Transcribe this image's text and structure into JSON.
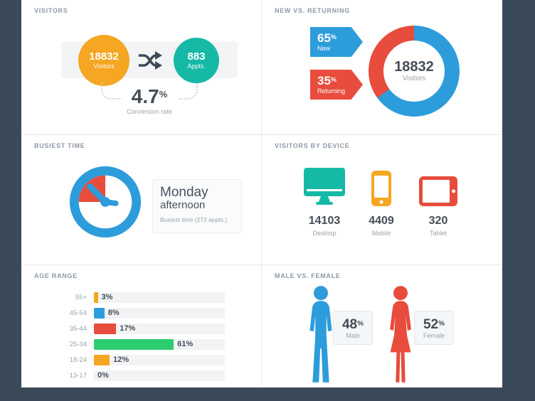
{
  "theme": {
    "background": "#3b4a59",
    "panel_bg": "#ffffff",
    "blue": "#2d9cdb",
    "red": "#e74c3c",
    "teal": "#16b9a5",
    "orange": "#f5a623",
    "green": "#2ecc71",
    "dark_text": "#454d57",
    "gray_text": "#9aa4ad"
  },
  "visitors_panel": {
    "title": "VISITORS",
    "visitors_value": "18832",
    "visitors_label": "Visitors",
    "appts_value": "883",
    "appts_label": "Appts.",
    "conversion_value": "4.7",
    "conversion_unit": "%",
    "conversion_label": "Conversion rate"
  },
  "new_vs_returning_panel": {
    "title": "NEW VS. RETURNING",
    "unit": "%",
    "new_pct": 65,
    "new_label": "New",
    "returning_pct": 35,
    "returning_label": "Returning",
    "total_value": "18832",
    "total_label": "Visitors"
  },
  "busiest_time_panel": {
    "title": "BUSIEST TIME",
    "day": "Monday",
    "period": "afternoon",
    "caption": "Busiest time",
    "caption_detail": "(272 appts.)"
  },
  "device_panel": {
    "title": "VISITORS BY DEVICE",
    "devices": [
      {
        "value": "14103",
        "label": "Desktop"
      },
      {
        "value": "4409",
        "label": "Mobile"
      },
      {
        "value": "320",
        "label": "Tablet"
      }
    ]
  },
  "age_panel": {
    "title": "AGE RANGE",
    "rows": [
      {
        "label": "55+",
        "pct": 3,
        "pct_label": "3%",
        "color": "#f5a623"
      },
      {
        "label": "45-54",
        "pct": 8,
        "pct_label": "8%",
        "color": "#2d9cdb"
      },
      {
        "label": "35-44",
        "pct": 17,
        "pct_label": "17%",
        "color": "#e74c3c"
      },
      {
        "label": "25-34",
        "pct": 61,
        "pct_label": "61%",
        "color": "#2ecc71"
      },
      {
        "label": "18-24",
        "pct": 12,
        "pct_label": "12%",
        "color": "#f5a623"
      },
      {
        "label": "13-17",
        "pct": 0,
        "pct_label": "0%",
        "color": "#f5a623"
      }
    ]
  },
  "gender_panel": {
    "title": "MALE VS. FEMALE",
    "unit": "%",
    "male_pct": "48",
    "male_label": "Male",
    "female_pct": "52",
    "female_label": "Female"
  },
  "chart_data": [
    {
      "type": "table",
      "title": "Visitors",
      "rows": [
        [
          "Visitors",
          18832
        ],
        [
          "Appts.",
          883
        ],
        [
          "Conversion rate",
          "4.7%"
        ]
      ]
    },
    {
      "type": "pie",
      "style": "donut",
      "title": "New vs. Returning",
      "labels": [
        "New",
        "Returning"
      ],
      "values": [
        65,
        35
      ],
      "unit": "%",
      "colors": [
        "#2d9cdb",
        "#e74c3c"
      ],
      "center_value": 18832,
      "center_label": "Visitors"
    },
    {
      "type": "table",
      "title": "Busiest time",
      "rows": [
        [
          "Busiest time",
          "Monday afternoon"
        ],
        [
          "Appointments",
          272
        ]
      ]
    },
    {
      "type": "bar",
      "title": "Visitors by device",
      "categories": [
        "Desktop",
        "Mobile",
        "Tablet"
      ],
      "values": [
        14103,
        4409,
        320
      ]
    },
    {
      "type": "bar",
      "orientation": "horizontal",
      "title": "Age range",
      "categories": [
        "55+",
        "45-54",
        "35-44",
        "25-34",
        "18-24",
        "13-17"
      ],
      "values": [
        3,
        8,
        17,
        61,
        12,
        0
      ],
      "unit": "%",
      "colors": [
        "#f5a623",
        "#2d9cdb",
        "#e74c3c",
        "#2ecc71",
        "#f5a623",
        "#f5a623"
      ],
      "xlim": [
        0,
        100
      ]
    },
    {
      "type": "pie",
      "title": "Male vs. Female",
      "labels": [
        "Male",
        "Female"
      ],
      "values": [
        48,
        52
      ],
      "unit": "%",
      "colors": [
        "#2d9cdb",
        "#e74c3c"
      ]
    }
  ]
}
